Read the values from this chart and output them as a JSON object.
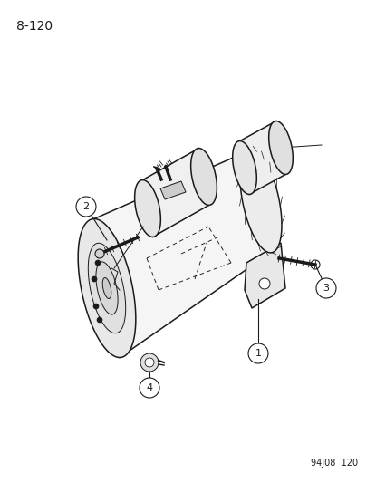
{
  "bg_color": "#ffffff",
  "line_color": "#1a1a1a",
  "page_label": "8-120",
  "footer_label": "94J08  120",
  "title_fontsize": 10,
  "callout_fontsize": 8,
  "footer_fontsize": 7
}
